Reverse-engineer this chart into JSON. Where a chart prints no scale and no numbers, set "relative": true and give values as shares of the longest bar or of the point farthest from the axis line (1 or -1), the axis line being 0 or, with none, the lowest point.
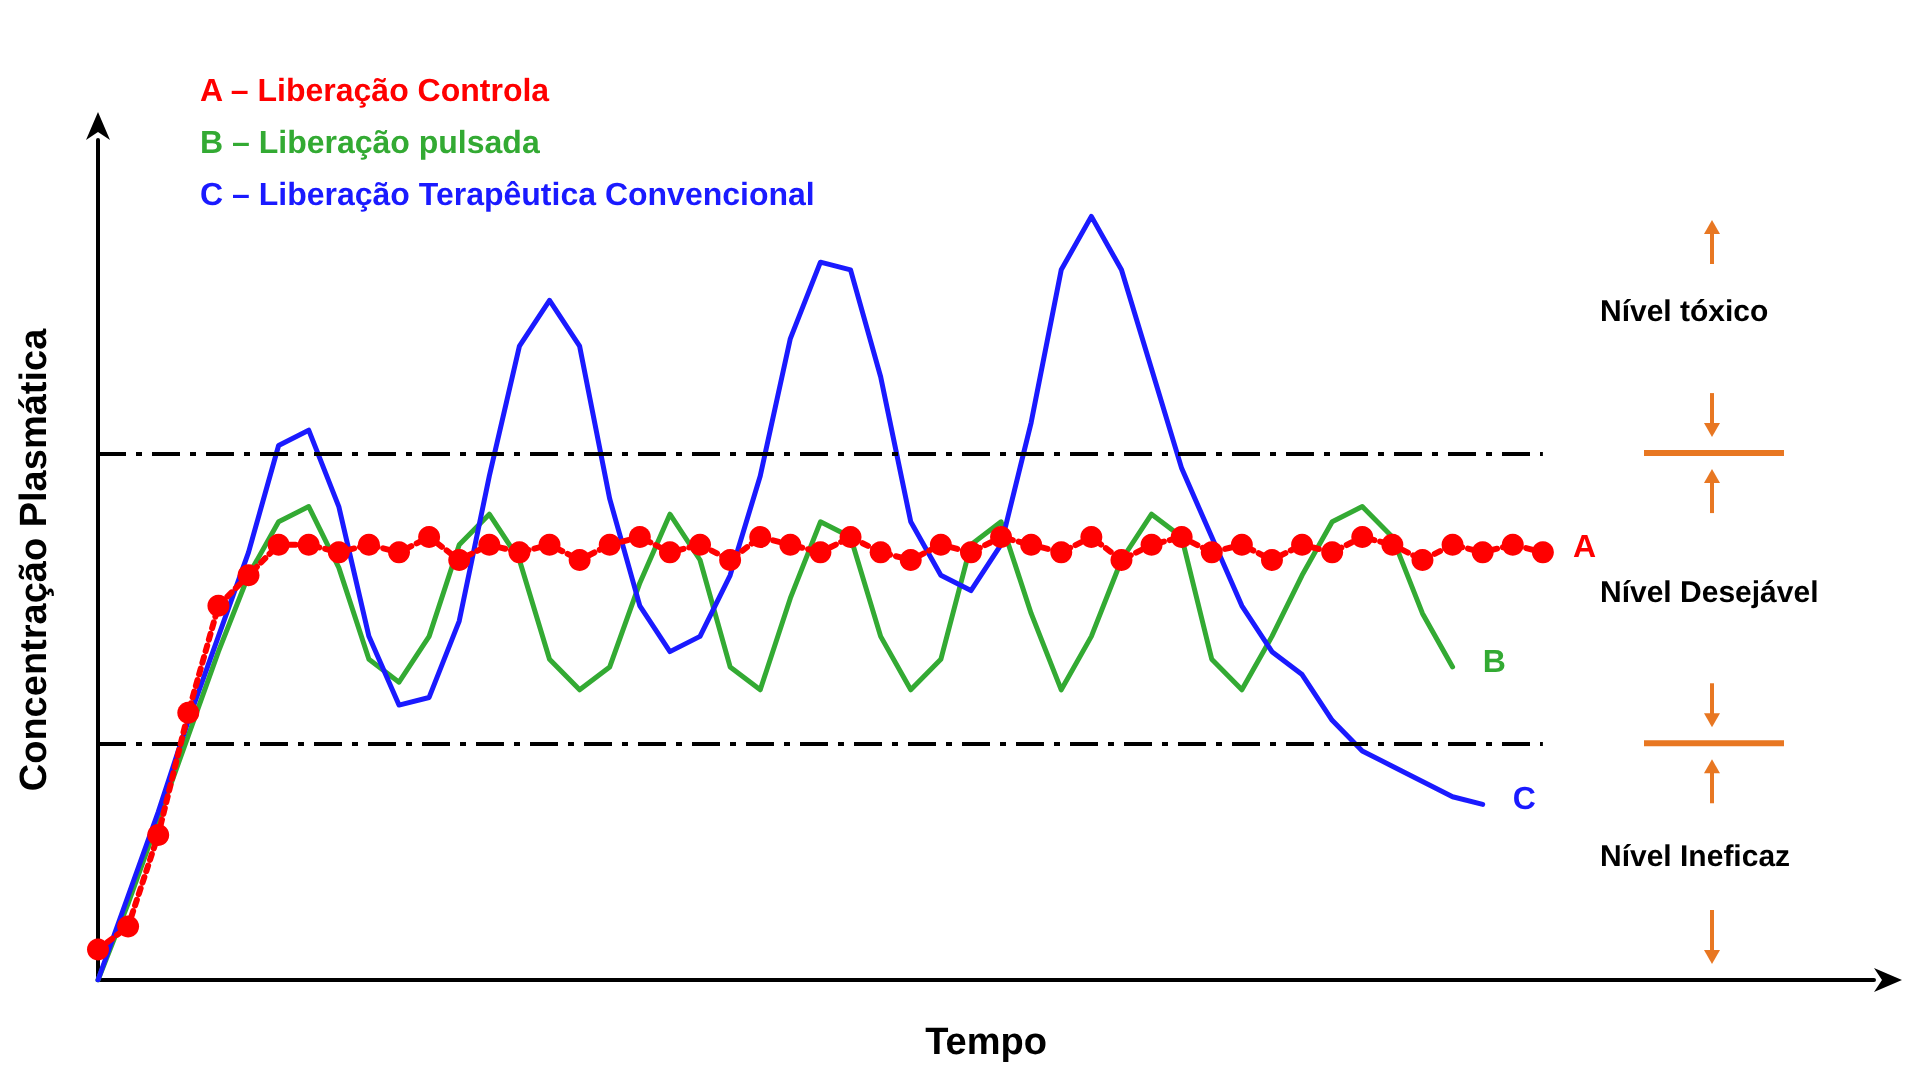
{
  "chart_data": {
    "type": "line",
    "relative": true,
    "xlabel": "Tempo",
    "ylabel": "Concentração Plasmática",
    "legend": false,
    "categories": [
      null,
      null,
      null,
      null,
      null,
      null,
      null,
      null,
      null,
      null,
      null,
      null,
      null,
      null,
      null,
      null,
      null,
      null,
      null,
      null,
      null,
      null,
      null,
      null,
      null,
      null,
      null,
      null,
      null,
      null,
      null,
      null,
      null,
      null,
      null,
      null,
      null,
      null,
      null,
      null,
      null,
      null,
      null,
      null,
      null,
      null,
      null,
      null,
      null,
      null,
      null,
      null,
      null,
      null,
      null,
      null,
      null,
      null,
      null,
      null
    ],
    "series": [
      {
        "name": "A – Liberação Controla",
        "marker": "circle",
        "line_style": "dotted",
        "color": "#ff0000",
        "values": [
          0.04,
          0.07,
          0.19,
          0.35,
          0.49,
          0.53,
          0.57,
          0.57,
          0.56,
          0.57,
          0.56,
          0.58,
          0.55,
          0.57,
          0.56,
          0.57,
          0.55,
          0.57,
          0.58,
          0.56,
          0.57,
          0.55,
          0.58,
          0.57,
          0.56,
          0.58,
          0.56,
          0.55,
          0.57,
          0.56,
          0.58,
          0.57,
          0.56,
          0.58,
          0.55,
          0.57,
          0.58,
          0.56,
          0.57,
          0.55,
          0.57,
          0.56,
          0.58,
          0.57,
          0.55,
          0.57,
          0.56,
          0.57,
          0.56,
          null,
          null,
          null,
          null,
          null,
          null,
          null,
          null,
          null,
          null,
          null
        ]
      },
      {
        "name": "B – Liberação pulsada",
        "color": "#33aa33",
        "values": [
          0,
          0.1,
          0.21,
          0.32,
          0.43,
          0.53,
          0.6,
          0.62,
          0.54,
          0.42,
          0.39,
          0.45,
          0.57,
          0.61,
          0.55,
          0.42,
          0.38,
          0.41,
          0.52,
          0.61,
          0.55,
          0.41,
          0.38,
          0.5,
          0.6,
          0.58,
          0.45,
          0.38,
          0.42,
          0.57,
          0.6,
          0.48,
          0.38,
          0.45,
          0.55,
          0.61,
          0.58,
          0.42,
          0.38,
          0.45,
          0.53,
          0.6,
          0.62,
          0.58,
          0.48,
          0.41,
          null,
          null,
          null,
          null,
          null,
          null,
          null,
          null,
          null,
          null,
          null,
          null,
          null,
          null
        ]
      },
      {
        "name": "C – Liberação Terapêutica Convencional",
        "color": "#1a1aff",
        "values": [
          0,
          0.11,
          0.22,
          0.34,
          0.45,
          0.56,
          0.7,
          0.72,
          0.62,
          0.45,
          0.36,
          0.37,
          0.47,
          0.66,
          0.83,
          0.89,
          0.83,
          0.63,
          0.49,
          0.43,
          0.45,
          0.53,
          0.66,
          0.84,
          0.94,
          0.93,
          0.79,
          0.6,
          0.53,
          0.51,
          0.57,
          0.73,
          0.93,
          1,
          0.93,
          0.8,
          0.67,
          0.58,
          0.49,
          0.43,
          0.4,
          0.34,
          0.3,
          0.28,
          0.26,
          0.24,
          0.23,
          null,
          null,
          null,
          null,
          null,
          null,
          null,
          null,
          null,
          null,
          null,
          null,
          null
        ]
      }
    ],
    "ref_lines": [
      {
        "axis": "y",
        "value": 0.69,
        "line_style": "dashed"
      },
      {
        "axis": "y",
        "value": 0.31,
        "line_style": "dashed"
      }
    ],
    "annotations": [
      "Nível tóxico",
      "Nível Desejável",
      "Nível Ineficaz",
      "A",
      "B",
      "C"
    ]
  }
}
